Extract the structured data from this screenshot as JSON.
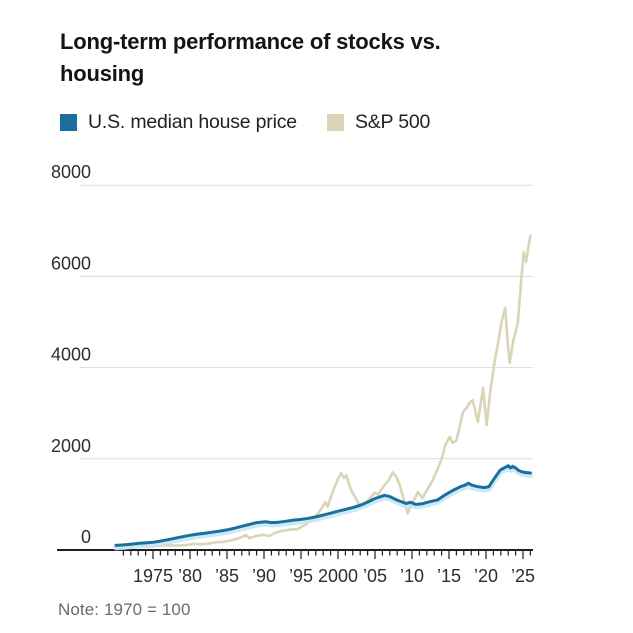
{
  "title": "Long-term performance of stocks vs. housing",
  "note": "Note: 1970 = 100",
  "legend": [
    {
      "label": "U.S. median house price",
      "color": "#1a6f9d"
    },
    {
      "label": "S&P 500",
      "color": "#d9d5b8"
    }
  ],
  "colors": {
    "house_line": "#1a6f9d",
    "house_glow": "#c3e5f4",
    "sp500_line": "#d9d5b8",
    "gridline": "#dcdcdc",
    "axis_line": "#1f1f1f",
    "axis_text": "#2e2e2e",
    "title_text": "#141414",
    "note_text": "#6b6b6b"
  },
  "chart_data": {
    "type": "line",
    "title": "Long-term performance of stocks vs. housing",
    "note": "1970 = 100",
    "legend_position": "top-left",
    "grid": "horizontal",
    "x_axis": {
      "range": [
        1969.2,
        2026.5
      ],
      "tick_years": [
        1975,
        1980,
        1985,
        1990,
        1995,
        2000,
        2005,
        2010,
        2015,
        2020,
        2025
      ],
      "tick_labels": [
        "1975",
        "’80",
        "’85",
        "’90",
        "’95",
        "2000",
        "’05",
        "’10",
        "’15",
        "’20",
        "’25"
      ],
      "minor_tick_start": 1971,
      "minor_tick_end": 2026,
      "minor_tick_interval": 1
    },
    "y_axis": {
      "range": [
        0,
        8000
      ],
      "ticks": [
        0,
        2000,
        4000,
        6000,
        8000
      ],
      "tick_labels": [
        "0",
        "2000",
        "4000",
        "6000",
        "8000"
      ]
    },
    "series": [
      {
        "name": "S&P 500",
        "color": "#d9d5b8",
        "points": [
          [
            1970,
            100
          ],
          [
            1971,
            108
          ],
          [
            1972,
            122
          ],
          [
            1972.9,
            112
          ],
          [
            1974,
            82
          ],
          [
            1974.7,
            68
          ],
          [
            1975.5,
            92
          ],
          [
            1976.5,
            105
          ],
          [
            1977.5,
            96
          ],
          [
            1978.5,
            98
          ],
          [
            1979.5,
            112
          ],
          [
            1980.5,
            132
          ],
          [
            1981.5,
            128
          ],
          [
            1982.5,
            140
          ],
          [
            1983.5,
            172
          ],
          [
            1984.5,
            178
          ],
          [
            1985.5,
            208
          ],
          [
            1986.5,
            252
          ],
          [
            1987.6,
            330
          ],
          [
            1988,
            258
          ],
          [
            1989,
            310
          ],
          [
            1990,
            335
          ],
          [
            1990.7,
            305
          ],
          [
            1991.5,
            375
          ],
          [
            1992.5,
            418
          ],
          [
            1993.5,
            448
          ],
          [
            1994.5,
            455
          ],
          [
            1995.5,
            545
          ],
          [
            1996.5,
            660
          ],
          [
            1997.5,
            845
          ],
          [
            1998.3,
            1050
          ],
          [
            1998.6,
            950
          ],
          [
            1999.3,
            1280
          ],
          [
            2000,
            1560
          ],
          [
            2000.4,
            1690
          ],
          [
            2000.8,
            1580
          ],
          [
            2001.1,
            1640
          ],
          [
            2001.8,
            1300
          ],
          [
            2002.5,
            1110
          ],
          [
            2003,
            940
          ],
          [
            2003.5,
            1000
          ],
          [
            2004.3,
            1130
          ],
          [
            2005,
            1260
          ],
          [
            2005.4,
            1210
          ],
          [
            2006,
            1365
          ],
          [
            2006.8,
            1520
          ],
          [
            2007.4,
            1700
          ],
          [
            2007.8,
            1620
          ],
          [
            2008.3,
            1450
          ],
          [
            2008.8,
            1160
          ],
          [
            2009.4,
            800
          ],
          [
            2009.9,
            1000
          ],
          [
            2010.4,
            1140
          ],
          [
            2010.8,
            1270
          ],
          [
            2011.4,
            1140
          ],
          [
            2012,
            1310
          ],
          [
            2012.7,
            1500
          ],
          [
            2013.4,
            1750
          ],
          [
            2014,
            2000
          ],
          [
            2014.5,
            2300
          ],
          [
            2015.1,
            2480
          ],
          [
            2015.5,
            2350
          ],
          [
            2016,
            2400
          ],
          [
            2016.9,
            3030
          ],
          [
            2017.4,
            3120
          ],
          [
            2017.8,
            3230
          ],
          [
            2018.2,
            3290
          ],
          [
            2018.9,
            2810
          ],
          [
            2019.6,
            3550
          ],
          [
            2020.1,
            2740
          ],
          [
            2020.6,
            3500
          ],
          [
            2021.2,
            4170
          ],
          [
            2021.7,
            4600
          ],
          [
            2022.1,
            5000
          ],
          [
            2022.6,
            5310
          ],
          [
            2022.9,
            4600
          ],
          [
            2023.2,
            4100
          ],
          [
            2023.7,
            4600
          ],
          [
            2024.3,
            4980
          ],
          [
            2024.7,
            5800
          ],
          [
            2025.1,
            6530
          ],
          [
            2025.4,
            6320
          ],
          [
            2026,
            6900
          ]
        ]
      },
      {
        "name": "U.S. median house price",
        "color": "#1a6f9d",
        "points": [
          [
            1970,
            100
          ],
          [
            1971,
            112
          ],
          [
            1972,
            128
          ],
          [
            1973,
            145
          ],
          [
            1974,
            155
          ],
          [
            1975,
            168
          ],
          [
            1976,
            195
          ],
          [
            1977,
            225
          ],
          [
            1978,
            258
          ],
          [
            1979,
            292
          ],
          [
            1980,
            322
          ],
          [
            1981,
            348
          ],
          [
            1982,
            368
          ],
          [
            1983,
            390
          ],
          [
            1984,
            415
          ],
          [
            1985,
            440
          ],
          [
            1986,
            478
          ],
          [
            1987,
            520
          ],
          [
            1988,
            560
          ],
          [
            1989,
            600
          ],
          [
            1990.2,
            620
          ],
          [
            1991,
            600
          ],
          [
            1992,
            610
          ],
          [
            1993,
            632
          ],
          [
            1994,
            655
          ],
          [
            1995,
            672
          ],
          [
            1996,
            695
          ],
          [
            1997,
            725
          ],
          [
            1998,
            765
          ],
          [
            1999,
            808
          ],
          [
            2000,
            850
          ],
          [
            2001,
            890
          ],
          [
            2002,
            930
          ],
          [
            2003,
            980
          ],
          [
            2004,
            1050
          ],
          [
            2005,
            1130
          ],
          [
            2006.3,
            1200
          ],
          [
            2007,
            1170
          ],
          [
            2008,
            1095
          ],
          [
            2009.2,
            1020
          ],
          [
            2009.8,
            1045
          ],
          [
            2010.5,
            1000
          ],
          [
            2011.3,
            1010
          ],
          [
            2012.2,
            1050
          ],
          [
            2013.5,
            1100
          ],
          [
            2014.5,
            1210
          ],
          [
            2015.5,
            1305
          ],
          [
            2016.5,
            1385
          ],
          [
            2017.3,
            1432
          ],
          [
            2017.6,
            1465
          ],
          [
            2018.1,
            1420
          ],
          [
            2019,
            1385
          ],
          [
            2019.8,
            1368
          ],
          [
            2020.4,
            1390
          ],
          [
            2021,
            1540
          ],
          [
            2021.9,
            1750
          ],
          [
            2022.5,
            1805
          ],
          [
            2023,
            1848
          ],
          [
            2023.3,
            1798
          ],
          [
            2023.6,
            1835
          ],
          [
            2024,
            1800
          ],
          [
            2024.4,
            1745
          ],
          [
            2024.8,
            1718
          ],
          [
            2025.3,
            1700
          ],
          [
            2026,
            1688
          ]
        ]
      }
    ]
  }
}
